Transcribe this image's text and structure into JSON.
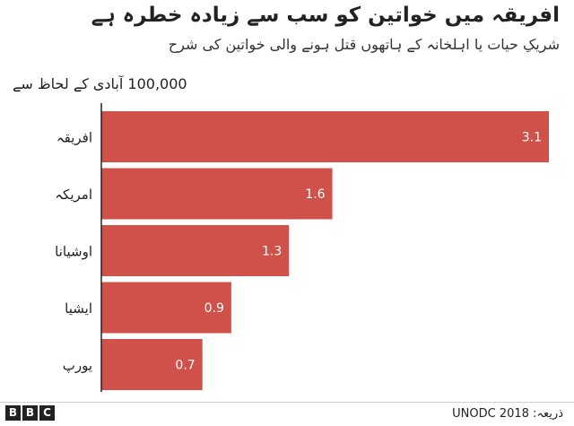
{
  "header": {
    "title": "افریقہ میں خواتین کو سب سے زیادہ خطرہ ہے",
    "subtitle": "شریکِ حیات یا اہلخانہ کے ہاتھوں قتل ہونے والی خواتین کی شرح",
    "unit_label": "100,000 آبادی کے لحاظ سے"
  },
  "footer": {
    "logo_letters": [
      "B",
      "B",
      "C"
    ],
    "source": "ذریعہ: UNODC 2018"
  },
  "colors": {
    "bar": "#d0504a",
    "bar_label": "#ffffff",
    "axis": "#222222"
  },
  "chart_data": {
    "type": "bar",
    "orientation": "horizontal",
    "categories": [
      "افریقہ",
      "امریکہ",
      "اوشیانا",
      "ایشیا",
      "یورپ"
    ],
    "values": [
      3.1,
      1.6,
      1.3,
      0.9,
      0.7
    ],
    "value_labels": [
      "3.1",
      "1.6",
      "1.3",
      "0.9",
      "0.7"
    ],
    "title": "افریقہ میں خواتین کو سب سے زیادہ خطرہ ہے",
    "subtitle": "شریکِ حیات یا اہلخانہ کے ہاتھوں قتل ہونے والی خواتین کی شرح",
    "xlabel": "100,000 آبادی کے لحاظ سے",
    "ylabel": "",
    "xlim": [
      0,
      3.1
    ],
    "grid": false,
    "legend": "none"
  }
}
